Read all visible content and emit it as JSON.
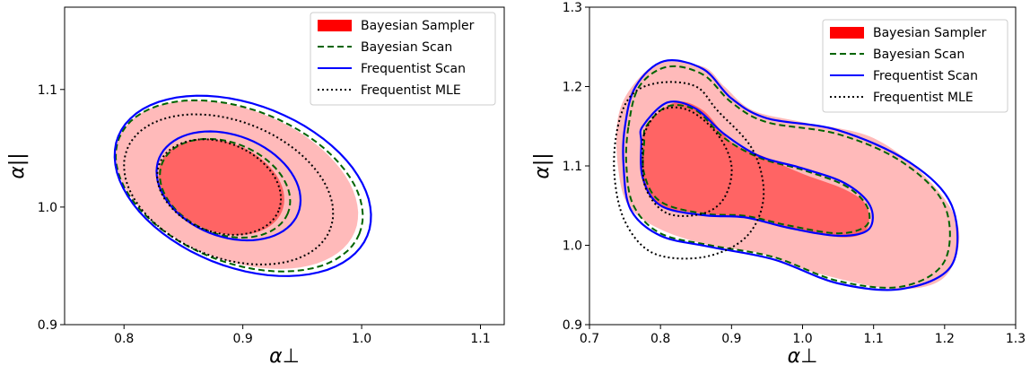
{
  "chart_data": [
    {
      "type": "contour",
      "xlabel": "α⊥",
      "ylabel": "α||",
      "xlim": [
        0.75,
        1.12
      ],
      "ylim": [
        0.9,
        1.17
      ],
      "xticks": [
        "0.8",
        "0.9",
        "1.0",
        "1.1"
      ],
      "yticks": [
        "0.9",
        "1.0",
        "1.1"
      ],
      "legend_position": "top-right",
      "legend": [
        "Bayesian Sampler",
        "Bayesian Scan",
        "Frequentist Scan",
        "Frequentist MLE"
      ],
      "series": [
        {
          "name": "Bayesian Sampler",
          "style": "filled",
          "color": "#ff0000",
          "contours": [
            {
              "level": "68%",
              "center": [
                0.882,
                1.017
              ],
              "rx": 0.055,
              "ry": 0.038,
              "angle": 22
            },
            {
              "level": "95%",
              "center": [
                0.895,
                1.019
              ],
              "rx": 0.107,
              "ry": 0.064,
              "angle": 22
            }
          ]
        },
        {
          "name": "Bayesian Scan",
          "style": "dashed",
          "color": "#006400",
          "contours": [
            {
              "level": "68%",
              "center": [
                0.885,
                1.016
              ],
              "rx": 0.057,
              "ry": 0.039,
              "angle": 22
            },
            {
              "level": "95%",
              "center": [
                0.897,
                1.018
              ],
              "rx": 0.109,
              "ry": 0.065,
              "angle": 22
            }
          ]
        },
        {
          "name": "Frequentist Scan",
          "style": "solid",
          "color": "#0000ff",
          "contours": [
            {
              "level": "68%",
              "center": [
                0.888,
                1.018
              ],
              "rx": 0.063,
              "ry": 0.043,
              "angle": 22
            },
            {
              "level": "95%",
              "center": [
                0.9,
                1.018
              ],
              "rx": 0.113,
              "ry": 0.069,
              "angle": 22
            }
          ]
        },
        {
          "name": "Frequentist MLE",
          "style": "dotted",
          "color": "#000000",
          "contours": [
            {
              "level": "68%",
              "center": [
                0.88,
                1.017
              ],
              "rx": 0.054,
              "ry": 0.038,
              "angle": 22
            },
            {
              "level": "95%",
              "center": [
                0.888,
                1.015
              ],
              "rx": 0.092,
              "ry": 0.058,
              "angle": 22
            }
          ]
        }
      ]
    },
    {
      "type": "contour",
      "xlabel": "α⊥",
      "ylabel": "α||",
      "xlim": [
        0.7,
        1.3
      ],
      "ylim": [
        0.9,
        1.3
      ],
      "xticks": [
        "0.7",
        "0.8",
        "0.9",
        "1.0",
        "1.1",
        "1.2",
        "1.3"
      ],
      "yticks": [
        "0.9",
        "1.0",
        "1.1",
        "1.2",
        "1.3"
      ],
      "legend_position": "top-right",
      "legend": [
        "Bayesian Sampler",
        "Bayesian Scan",
        "Frequentist Scan",
        "Frequentist MLE"
      ],
      "series": [
        {
          "name": "Bayesian Sampler",
          "style": "filled",
          "color": "#ff0000",
          "contours": [
            {
              "level": "68%",
              "points": [
                [
                  0.78,
                  1.15
                ],
                [
                  0.82,
                  1.18
                ],
                [
                  0.86,
                  1.17
                ],
                [
                  0.9,
                  1.13
                ],
                [
                  0.95,
                  1.11
                ],
                [
                  1.0,
                  1.09
                ],
                [
                  1.06,
                  1.07
                ],
                [
                  1.09,
                  1.05
                ],
                [
                  1.09,
                  1.02
                ],
                [
                  1.06,
                  1.01
                ],
                [
                  0.99,
                  1.02
                ],
                [
                  0.93,
                  1.035
                ],
                [
                  0.86,
                  1.04
                ],
                [
                  0.8,
                  1.05
                ],
                [
                  0.775,
                  1.08
                ],
                [
                  0.775,
                  1.12
                ]
              ]
            },
            {
              "level": "95%",
              "points": [
                [
                  0.74,
                  1.16
                ],
                [
                  0.76,
                  1.2
                ],
                [
                  0.8,
                  1.23
                ],
                [
                  0.86,
                  1.225
                ],
                [
                  0.89,
                  1.2
                ],
                [
                  0.93,
                  1.17
                ],
                [
                  1.0,
                  1.155
                ],
                [
                  1.1,
                  1.135
                ],
                [
                  1.18,
                  1.08
                ],
                [
                  1.22,
                  1.02
                ],
                [
                  1.2,
                  0.96
                ],
                [
                  1.13,
                  0.945
                ],
                [
                  1.02,
                  0.965
                ],
                [
                  0.94,
                  0.99
                ],
                [
                  0.87,
                  1.0
                ],
                [
                  0.8,
                  1.02
                ],
                [
                  0.755,
                  1.05
                ],
                [
                  0.74,
                  1.1
                ]
              ]
            }
          ]
        },
        {
          "name": "Bayesian Scan",
          "style": "dashed",
          "color": "#006400",
          "contours": [
            {
              "level": "68%",
              "points": [
                [
                  0.78,
                  1.15
                ],
                [
                  0.81,
                  1.175
                ],
                [
                  0.85,
                  1.17
                ],
                [
                  0.89,
                  1.135
                ],
                [
                  0.94,
                  1.11
                ],
                [
                  1.0,
                  1.095
                ],
                [
                  1.06,
                  1.075
                ],
                [
                  1.09,
                  1.05
                ],
                [
                  1.09,
                  1.025
                ],
                [
                  1.05,
                  1.015
                ],
                [
                  0.98,
                  1.025
                ],
                [
                  0.92,
                  1.037
                ],
                [
                  0.86,
                  1.04
                ],
                [
                  0.8,
                  1.055
                ],
                [
                  0.777,
                  1.09
                ],
                [
                  0.777,
                  1.13
                ]
              ]
            },
            {
              "level": "95%",
              "points": [
                [
                  0.755,
                  1.15
                ],
                [
                  0.77,
                  1.2
                ],
                [
                  0.81,
                  1.225
                ],
                [
                  0.86,
                  1.215
                ],
                [
                  0.9,
                  1.18
                ],
                [
                  0.95,
                  1.155
                ],
                [
                  1.05,
                  1.14
                ],
                [
                  1.14,
                  1.105
                ],
                [
                  1.2,
                  1.05
                ],
                [
                  1.2,
                  0.98
                ],
                [
                  1.14,
                  0.948
                ],
                [
                  1.05,
                  0.955
                ],
                [
                  0.96,
                  0.985
                ],
                [
                  0.87,
                  1.0
                ],
                [
                  0.8,
                  1.015
                ],
                [
                  0.762,
                  1.05
                ],
                [
                  0.752,
                  1.1
                ]
              ]
            }
          ]
        },
        {
          "name": "Frequentist Scan",
          "style": "solid",
          "color": "#0000ff",
          "contours": [
            {
              "level": "68%",
              "points": [
                [
                  0.775,
                  1.15
                ],
                [
                  0.81,
                  1.18
                ],
                [
                  0.85,
                  1.172
                ],
                [
                  0.89,
                  1.14
                ],
                [
                  0.94,
                  1.112
                ],
                [
                  1.0,
                  1.097
                ],
                [
                  1.06,
                  1.078
                ],
                [
                  1.095,
                  1.05
                ],
                [
                  1.093,
                  1.02
                ],
                [
                  1.05,
                  1.012
                ],
                [
                  0.98,
                  1.022
                ],
                [
                  0.92,
                  1.035
                ],
                [
                  0.86,
                  1.038
                ],
                [
                  0.8,
                  1.05
                ],
                [
                  0.775,
                  1.085
                ],
                [
                  0.773,
                  1.13
                ]
              ]
            },
            {
              "level": "95%",
              "points": [
                [
                  0.75,
                  1.15
                ],
                [
                  0.765,
                  1.2
                ],
                [
                  0.805,
                  1.232
                ],
                [
                  0.86,
                  1.222
                ],
                [
                  0.9,
                  1.185
                ],
                [
                  0.95,
                  1.16
                ],
                [
                  1.05,
                  1.145
                ],
                [
                  1.15,
                  1.105
                ],
                [
                  1.21,
                  1.05
                ],
                [
                  1.21,
                  0.975
                ],
                [
                  1.14,
                  0.945
                ],
                [
                  1.05,
                  0.952
                ],
                [
                  0.96,
                  0.982
                ],
                [
                  0.87,
                  0.998
                ],
                [
                  0.8,
                  1.012
                ],
                [
                  0.758,
                  1.045
                ],
                [
                  0.748,
                  1.1
                ]
              ]
            }
          ]
        },
        {
          "name": "Frequentist MLE",
          "style": "dotted",
          "color": "#000000",
          "contours": [
            {
              "level": "68%",
              "points": [
                [
                  0.777,
                  1.14
                ],
                [
                  0.8,
                  1.17
                ],
                [
                  0.84,
                  1.17
                ],
                [
                  0.88,
                  1.14
                ],
                [
                  0.9,
                  1.1
                ],
                [
                  0.89,
                  1.06
                ],
                [
                  0.86,
                  1.04
                ],
                [
                  0.81,
                  1.04
                ],
                [
                  0.78,
                  1.07
                ],
                [
                  0.775,
                  1.11
                ]
              ]
            },
            {
              "level": "95%",
              "points": [
                [
                  0.74,
                  1.15
                ],
                [
                  0.76,
                  1.19
                ],
                [
                  0.8,
                  1.205
                ],
                [
                  0.85,
                  1.2
                ],
                [
                  0.88,
                  1.17
                ],
                [
                  0.93,
                  1.12
                ],
                [
                  0.945,
                  1.06
                ],
                [
                  0.92,
                  1.01
                ],
                [
                  0.86,
                  0.985
                ],
                [
                  0.79,
                  0.99
                ],
                [
                  0.75,
                  1.03
                ],
                [
                  0.735,
                  1.09
                ]
              ]
            }
          ]
        }
      ]
    }
  ]
}
